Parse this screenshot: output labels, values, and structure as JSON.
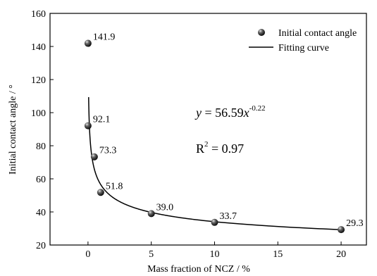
{
  "chart_data": {
    "type": "scatter",
    "xlabel": "Mass fraction of NCZ / %",
    "ylabel": "Initial contact angle / °",
    "xlim": [
      -3,
      22
    ],
    "ylim": [
      20,
      160
    ],
    "xticks": [
      0,
      5,
      10,
      15,
      20
    ],
    "yticks": [
      20,
      40,
      60,
      80,
      100,
      120,
      140,
      160
    ],
    "grid": false,
    "legend_position": "top-right",
    "series": [
      {
        "name": "Initial contact angle",
        "kind": "points",
        "x": [
          0,
          0,
          0.5,
          1,
          5,
          10,
          20
        ],
        "y": [
          141.9,
          92.1,
          73.3,
          51.8,
          39.0,
          33.7,
          29.3
        ],
        "labels": [
          "141.9",
          "92.1",
          "73.3",
          "51.8",
          "39.0",
          "33.7",
          "29.3"
        ]
      },
      {
        "name": "Fitting curve",
        "kind": "line",
        "equation": {
          "a": 56.59,
          "b": -0.22
        },
        "x_start": 0.05,
        "x_end": 20
      }
    ],
    "annotations": {
      "equation_y": "y",
      "equation_eq": " = 56.59",
      "equation_x": "x",
      "equation_exp": "-0.22",
      "r2_base": "R",
      "r2_sup": "2",
      "r2_rest": " = 0.97"
    }
  }
}
